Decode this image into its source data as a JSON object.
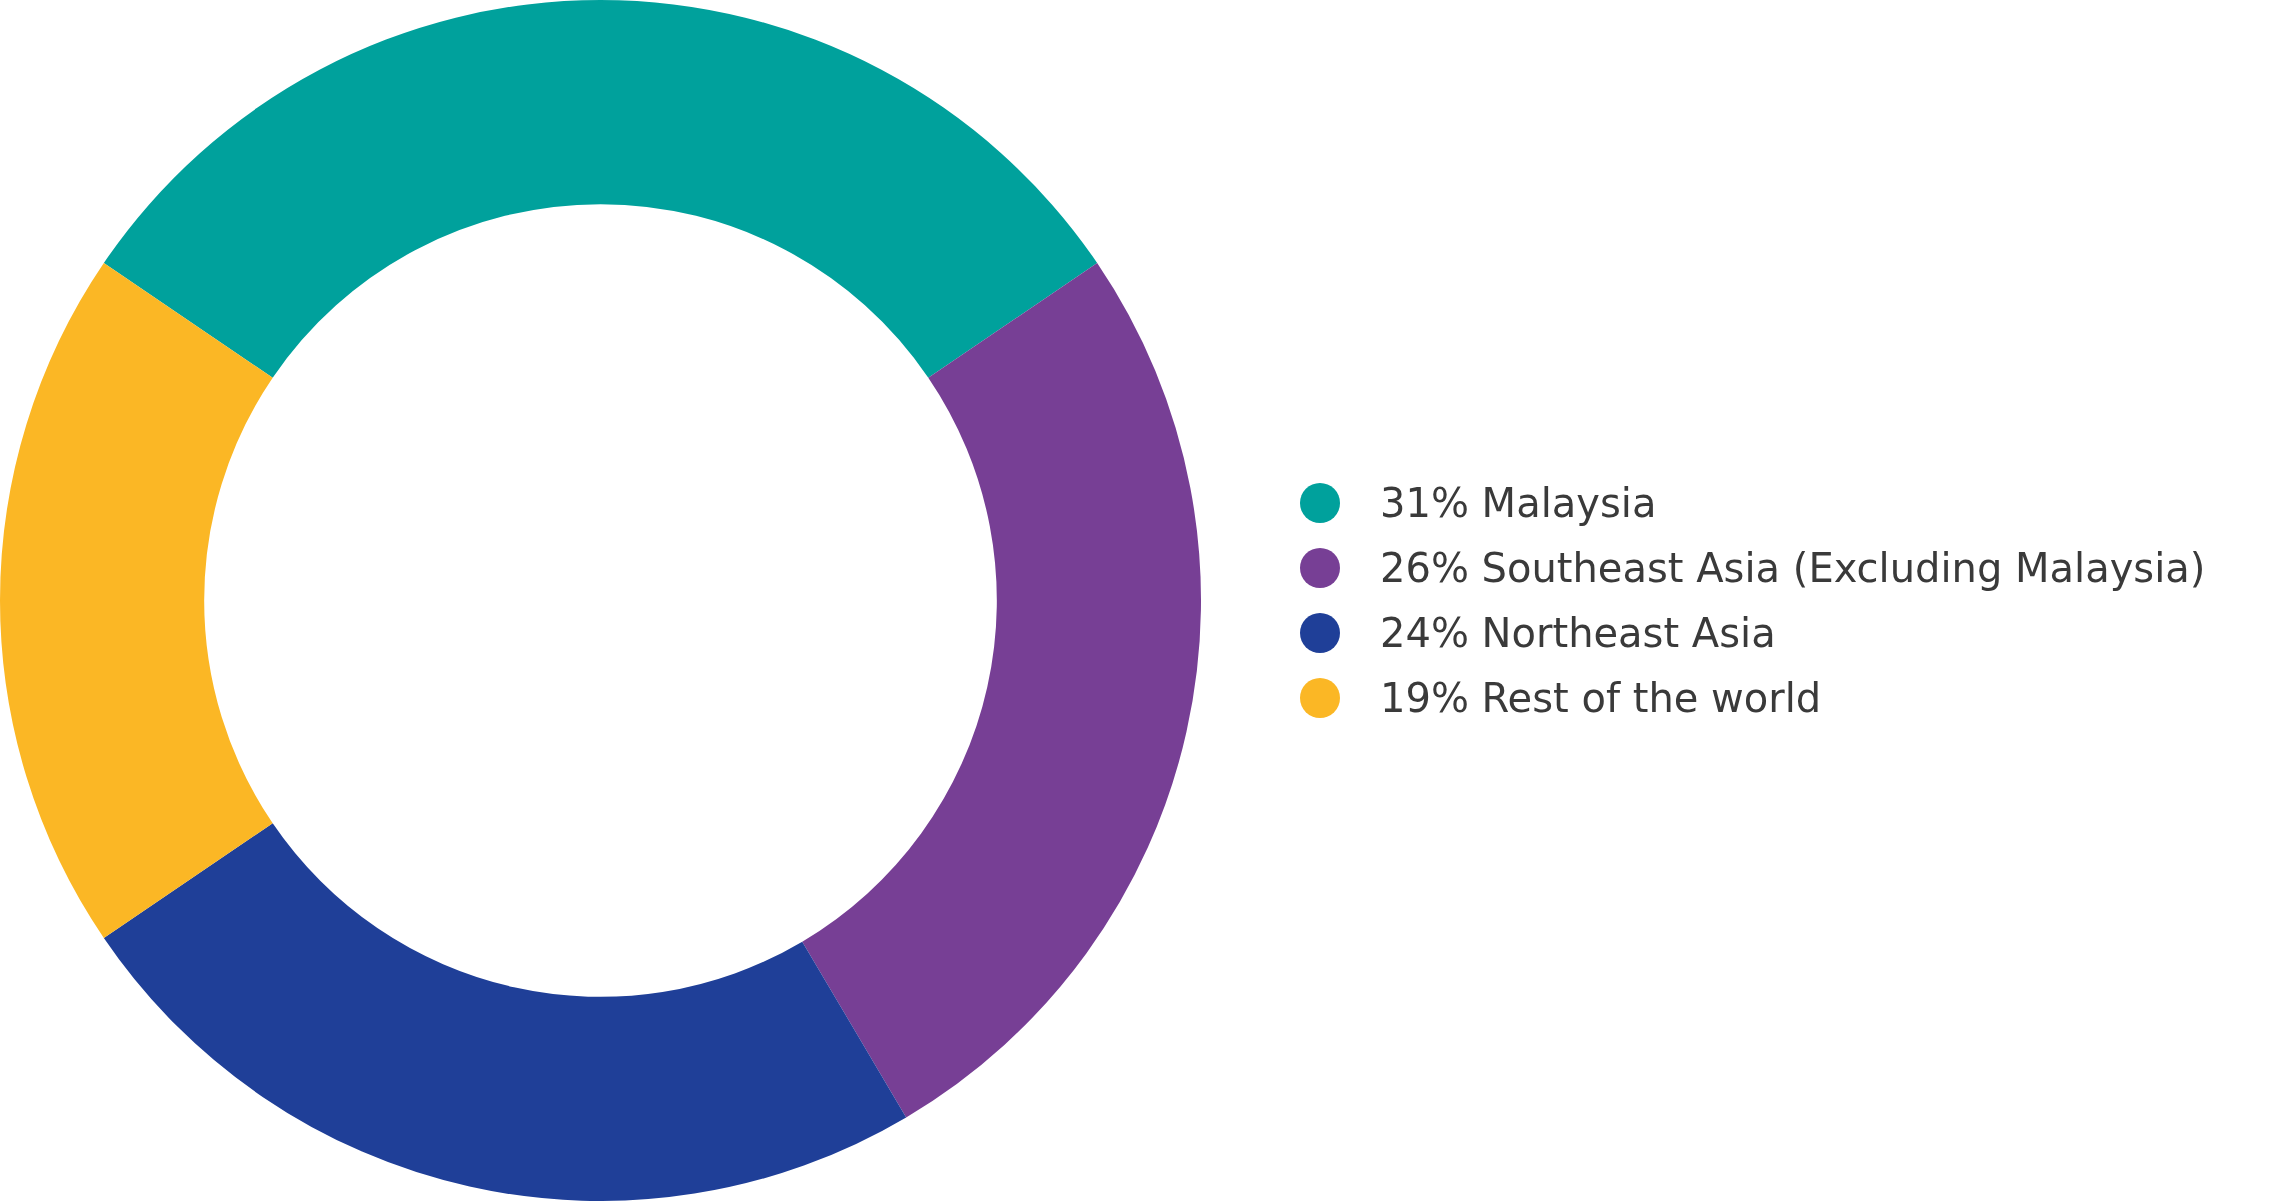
{
  "chart_data": {
    "type": "donut",
    "categories": [
      "31% Malaysia",
      "26% Southeast Asia (Excluding Malaysia)",
      "24% Northeast Asia",
      "19% Rest of the world"
    ],
    "values": [
      31,
      26,
      24,
      19
    ],
    "colors": [
      "#00a19c",
      "#773f95",
      "#1f3f98",
      "#fbb725"
    ],
    "legend": "right"
  }
}
